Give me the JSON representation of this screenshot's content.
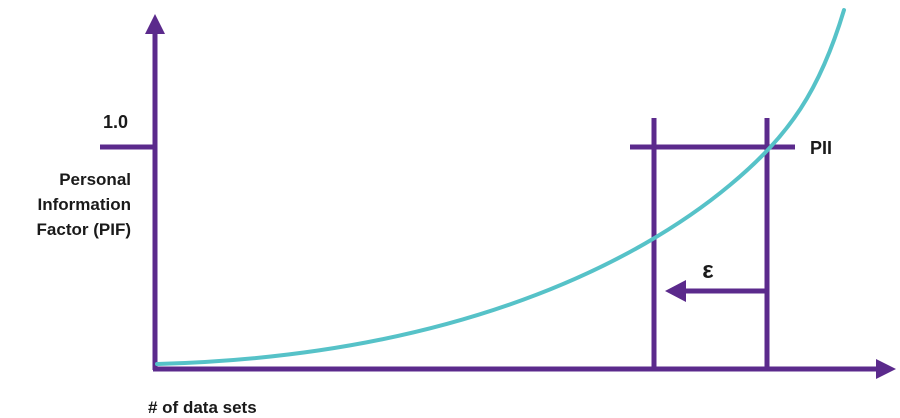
{
  "labels": {
    "y_tick": "1.0",
    "y_axis_lines": [
      "Personal",
      "Information",
      "Factor (PIF)"
    ],
    "x_axis": "# of data sets",
    "pii": "PII",
    "epsilon": "ε"
  },
  "colors": {
    "axis": "#5b2a8c",
    "curve": "#56c2c8",
    "text": "#1a1a1a",
    "background": "#ffffff"
  }
}
